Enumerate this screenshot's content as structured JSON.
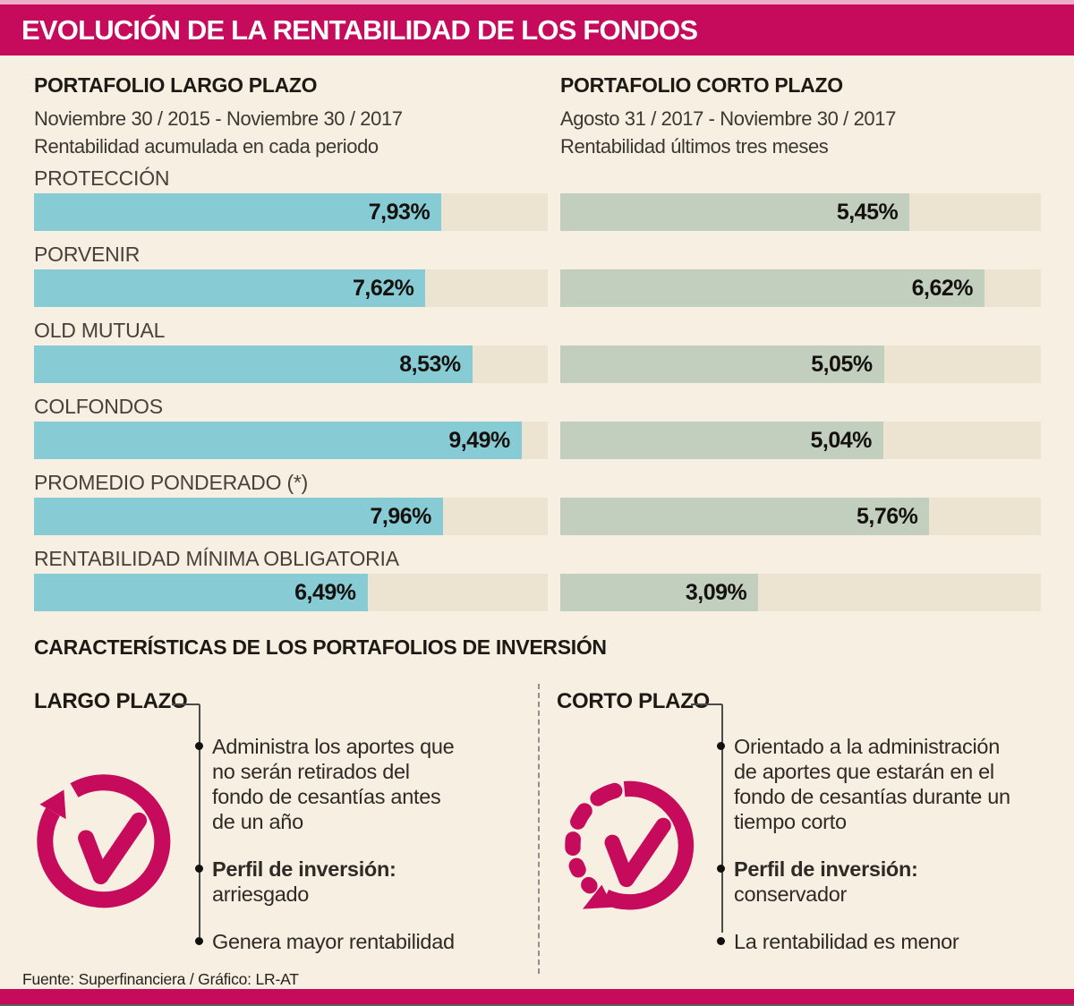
{
  "title": "EVOLUCIÓN DE LA RENTABILIDAD DE LOS FONDOS",
  "chart_data": {
    "type": "bar",
    "orientation": "horizontal",
    "grid": false,
    "legend": "none",
    "value_labels": true,
    "categories": [
      "PROTECCIÓN",
      "PORVENIR",
      "OLD MUTUAL",
      "COLFONDOS",
      "PROMEDIO PONDERADO (*)",
      "RENTABILIDAD MÍNIMA OBLIGATORIA"
    ],
    "series": [
      {
        "name": "PORTAFOLIO LARGO PLAZO",
        "period": "Noviembre 30 / 2015 - Noviembre 30 / 2017",
        "note": "Rentabilidad acumulada en cada periodo",
        "values": [
          7.93,
          7.62,
          8.53,
          9.49,
          7.96,
          6.49
        ],
        "labels": [
          "7,93%",
          "7,62%",
          "8,53%",
          "9,49%",
          "7,96%",
          "6,49%"
        ],
        "axis_max": 10,
        "color": "#87cbd4"
      },
      {
        "name": "PORTAFOLIO CORTO PLAZO",
        "period": "Agosto 31 / 2017 - Noviembre 30 / 2017",
        "note": "Rentabilidad últimos tres meses",
        "values": [
          5.45,
          6.62,
          5.05,
          5.04,
          5.76,
          3.09
        ],
        "labels": [
          "5,45%",
          "6,62%",
          "5,05%",
          "5,04%",
          "5,76%",
          "3,09%"
        ],
        "axis_max": 7.5,
        "color": "#c2cfbf"
      }
    ]
  },
  "features": {
    "heading": "CARACTERÍSTICAS DE LOS PORTAFOLIOS DE INVERSIÓN",
    "columns": [
      {
        "title": "LARGO PLAZO",
        "icon": "clock-counterclockwise-icon",
        "items": [
          {
            "lead": "",
            "text": "Administra los aportes que\nno serán retirados del\nfondo de cesantías antes\nde un año"
          },
          {
            "lead": "Perfil de inversión:",
            "text": "arriesgado"
          },
          {
            "lead": "",
            "text": "Genera mayor rentabilidad"
          }
        ]
      },
      {
        "title": "CORTO PLAZO",
        "icon": "clock-clockwise-dashed-icon",
        "items": [
          {
            "lead": "",
            "text": "Orientado a la administración\nde aportes que estarán en el\nfondo de cesantías durante un\ntiempo corto"
          },
          {
            "lead": "Perfil de inversión:",
            "text": "conservador"
          },
          {
            "lead": "",
            "text": "La rentabilidad es menor"
          }
        ]
      }
    ]
  },
  "footer": {
    "source": "Fuente: Superfinanciera / Gráfico: LR-AT"
  },
  "colors": {
    "accent": "#c60b5c",
    "accent_light": "#eeadc6",
    "bar_long": "#87cbd4",
    "bar_short": "#c2cfbf",
    "track": "#ece3d0",
    "background": "#f7efe1"
  }
}
